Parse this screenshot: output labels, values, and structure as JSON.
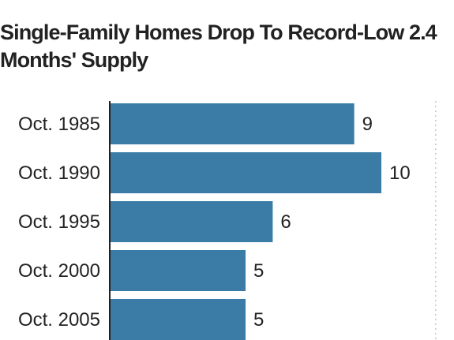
{
  "title": "Single-Family Homes Drop To Record-Low 2.4 Months' Supply",
  "chart_data": {
    "type": "bar",
    "orientation": "horizontal",
    "title": "Single-Family Homes Drop To Record-Low 2.4 Months' Supply",
    "categories": [
      "Oct. 1985",
      "Oct. 1990",
      "Oct. 1995",
      "Oct. 2000",
      "Oct. 2005"
    ],
    "values": [
      9,
      10,
      6,
      5,
      5
    ],
    "value_labels": [
      "9",
      "10",
      "6",
      "5",
      "5"
    ],
    "xlim": [
      0,
      12
    ],
    "xlabel": "",
    "ylabel": "",
    "bar_color": "#3a7ca5",
    "grid": "dotted vertical line at right",
    "legend": "none"
  }
}
